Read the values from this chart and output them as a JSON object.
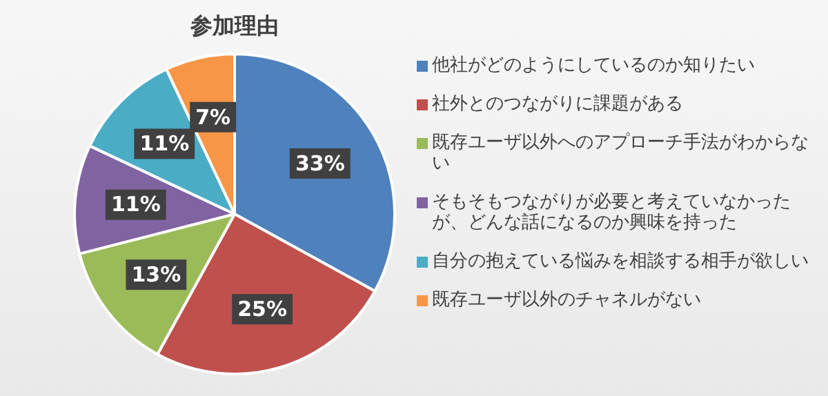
{
  "chart_data": {
    "type": "pie",
    "title": "参加理由",
    "categories": [
      "他社がどのようにしているのか知りたい",
      "社外とのつながりに課題がある",
      "既存ユーザ以外へのアプローチ手法がわからない",
      "そもそもつながりが必要と考えていなかったが、どんな話になるのか興味を持った",
      "自分の抱えている悩みを相談する相手が欲しい",
      "既存ユーザ以外のチャネルがない"
    ],
    "values": [
      33,
      25,
      13,
      11,
      11,
      7
    ],
    "colors": [
      "#4f81bd",
      "#c0504d",
      "#9bbb59",
      "#8064a2",
      "#4bacc6",
      "#f79646"
    ],
    "value_labels": [
      "33%",
      "25%",
      "13%",
      "11%",
      "11%",
      "7%"
    ],
    "legend": "right"
  }
}
